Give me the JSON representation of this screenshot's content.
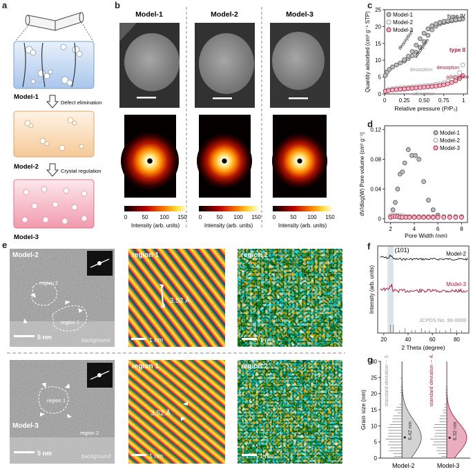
{
  "panel_labels": {
    "a": "a",
    "b": "b",
    "c": "c",
    "d": "d",
    "e": "e",
    "f": "f",
    "g": "g"
  },
  "panel_a": {
    "model1": "Model-1",
    "model2": "Model-2",
    "model3": "Model-3",
    "step1": "Defect elimination",
    "step2": "Crystal regulation"
  },
  "panel_b": {
    "col_titles": [
      "Model-1",
      "Model-2",
      "Model-3"
    ],
    "colorbar_label": "Intensity (arb. units)",
    "colorbar_ticks": [
      "0",
      "50",
      "100",
      "150"
    ]
  },
  "panel_e": {
    "row1_label": "Model-2",
    "row2_label": "Model-3",
    "region1": "region 1",
    "region2": "region 2",
    "scale_5nm": "5 nm",
    "scale_1nm": "1 nm",
    "background": "background",
    "d_spacing": "3.52 Å"
  },
  "chart_data": [
    {
      "type": "scatter",
      "panel": "c",
      "xlabel": "Relative pressure (P/P₀)",
      "ylabel": "Quantity adsorbed (cm³ g⁻¹ STP)",
      "xlim": [
        0,
        1.05
      ],
      "ylim": [
        0,
        25
      ],
      "xticks": [
        "0",
        "0.25",
        "0.50",
        "0.75",
        "1"
      ],
      "yticks": [
        "0",
        "5",
        "10",
        "15",
        "20",
        "25"
      ],
      "legend": [
        "Model-1",
        "Model-2",
        "Model-3"
      ],
      "annotations": {
        "type4": "type IV",
        "type2": "type II",
        "des1": "desorption",
        "ads1": "adsorption",
        "des2": "desorption",
        "ads2": "adsorption",
        "des3": "desorption",
        "ads3": "adsorption"
      },
      "series": [
        {
          "name": "Model-1 adsorption",
          "x": [
            0.01,
            0.03,
            0.06,
            0.1,
            0.15,
            0.2,
            0.25,
            0.3,
            0.35,
            0.4,
            0.45,
            0.5,
            0.55,
            0.6,
            0.65,
            0.7,
            0.75,
            0.8,
            0.85,
            0.9,
            0.95,
            0.99
          ],
          "y": [
            5.5,
            6.5,
            7.3,
            8.0,
            8.6,
            9.2,
            9.8,
            10.5,
            11.3,
            12.4,
            13.8,
            15.5,
            17.4,
            19.0,
            20.1,
            20.8,
            21.2,
            21.5,
            21.7,
            21.9,
            22.1,
            22.3
          ]
        },
        {
          "name": "Model-1 desorption",
          "x": [
            0.99,
            0.95,
            0.9,
            0.85,
            0.8,
            0.75,
            0.7,
            0.65,
            0.6,
            0.55,
            0.5,
            0.45,
            0.4,
            0.35,
            0.3,
            0.25
          ],
          "y": [
            22.3,
            22.2,
            22.0,
            21.9,
            21.7,
            21.5,
            21.2,
            20.8,
            20.2,
            19.3,
            18.0,
            16.4,
            14.5,
            12.6,
            11.2,
            10.2
          ]
        },
        {
          "name": "Model-2",
          "x": [
            0.01,
            0.05,
            0.1,
            0.15,
            0.2,
            0.25,
            0.3,
            0.35,
            0.4,
            0.45,
            0.5,
            0.55,
            0.6,
            0.65,
            0.7,
            0.75,
            0.8,
            0.85,
            0.9,
            0.95,
            0.99
          ],
          "y": [
            1.0,
            1.3,
            1.5,
            1.7,
            1.8,
            1.9,
            2.0,
            2.1,
            2.2,
            2.3,
            2.4,
            2.5,
            2.6,
            2.8,
            3.0,
            3.3,
            3.7,
            4.2,
            5.0,
            6.3,
            8.6
          ]
        },
        {
          "name": "Model-3",
          "x": [
            0.01,
            0.05,
            0.1,
            0.15,
            0.2,
            0.25,
            0.3,
            0.35,
            0.4,
            0.45,
            0.5,
            0.55,
            0.6,
            0.65,
            0.7,
            0.75,
            0.8,
            0.85,
            0.9,
            0.95,
            0.99
          ],
          "y": [
            0.8,
            1.0,
            1.2,
            1.3,
            1.4,
            1.5,
            1.6,
            1.7,
            1.8,
            1.9,
            2.0,
            2.1,
            2.2,
            2.3,
            2.5,
            2.7,
            3.0,
            3.4,
            3.9,
            4.6,
            5.4
          ]
        }
      ]
    },
    {
      "type": "scatter",
      "panel": "d",
      "xlabel": "Pore Width (nm)",
      "ylabel": "dV/dlog(W) Pore volume (cm³ g⁻¹)",
      "xlim": [
        1.5,
        8.5
      ],
      "ylim": [
        -0.005,
        0.125
      ],
      "xticks": [
        "2",
        "4",
        "6",
        "8"
      ],
      "yticks": [
        "0",
        "0.04",
        "0.08",
        "0.12"
      ],
      "legend": [
        "Model-1",
        "Model-2",
        "Model-3"
      ],
      "series": [
        {
          "name": "Model-1",
          "x": [
            2.0,
            2.2,
            2.4,
            2.6,
            2.8,
            3.0,
            3.2,
            3.5,
            3.8,
            4.1,
            4.4,
            4.8,
            5.2,
            5.6,
            6.0,
            6.5,
            7.0,
            7.5,
            8.0
          ],
          "y": [
            0.004,
            0.012,
            0.022,
            0.04,
            0.06,
            0.063,
            0.075,
            0.093,
            0.085,
            0.085,
            0.08,
            0.05,
            0.025,
            0.012,
            0.005,
            0.003,
            0.003,
            0.003,
            0.003
          ]
        },
        {
          "name": "Model-2",
          "x": [
            2.0,
            2.2,
            2.4,
            2.6,
            2.8,
            3.0,
            3.3,
            3.6,
            4.0,
            4.4,
            4.8,
            5.2,
            5.6,
            6.0,
            6.5,
            7.0,
            7.5,
            8.0
          ],
          "y": [
            0.004,
            0.005,
            0.005,
            0.004,
            0.004,
            0.004,
            0.003,
            0.003,
            0.003,
            0.003,
            0.003,
            0.003,
            0.003,
            0.003,
            0.003,
            0.003,
            0.003,
            0.003
          ]
        },
        {
          "name": "Model-3",
          "x": [
            2.0,
            2.2,
            2.4,
            2.6,
            2.8,
            3.0,
            3.3,
            3.6,
            4.0,
            4.4,
            4.8,
            5.2,
            5.6,
            6.0,
            6.5,
            7.0,
            7.5,
            8.0
          ],
          "y": [
            0.002,
            0.003,
            0.003,
            0.003,
            0.002,
            0.002,
            0.002,
            0.002,
            0.002,
            0.002,
            0.002,
            0.002,
            0.002,
            0.002,
            0.002,
            0.002,
            0.002,
            0.002
          ]
        }
      ]
    },
    {
      "type": "line",
      "panel": "f",
      "xlabel": "2 Theta (degree)",
      "ylabel": "Intensity (arb. units)",
      "xlim": [
        15,
        90
      ],
      "xticks": [
        "20",
        "40",
        "60",
        "80"
      ],
      "peak_label": "(101)",
      "reference": "JCPDS No. 99-0008",
      "series": [
        {
          "name": "Model-2",
          "color": "#222222"
        },
        {
          "name": "Model-3",
          "color": "#a01d3d"
        }
      ]
    },
    {
      "type": "bar",
      "panel": "g",
      "ylabel": "Grain size (nm)",
      "ylim": [
        0,
        30
      ],
      "yticks": [
        "0",
        "5",
        "10",
        "15",
        "20",
        "25",
        "30"
      ],
      "categories": [
        "Model-2",
        "Model-3"
      ],
      "std_labels": [
        "standard deviation ~ 5.30",
        "standard deviation ~ 4.55"
      ],
      "mean_labels": [
        "6.42 nm",
        "6.32 nm"
      ],
      "mean_values": [
        6.42,
        6.32
      ],
      "std_values": [
        5.3,
        4.55
      ]
    }
  ]
}
